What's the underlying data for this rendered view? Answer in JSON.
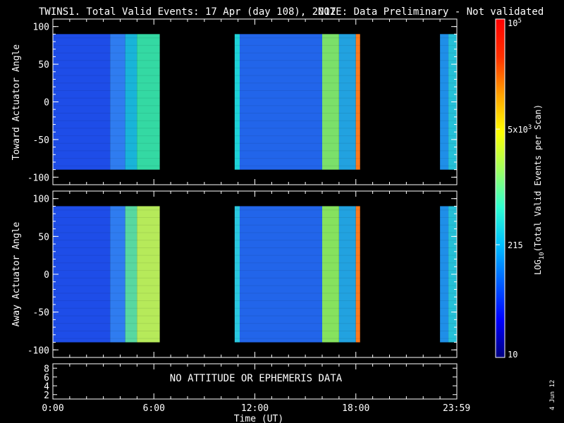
{
  "header": {
    "title": "TWINS1. Total Valid Events: 17 Apr (day 108), 2012",
    "note": "NOTE: Data Preliminary - Not validated",
    "note_color": "#ff2020"
  },
  "chart_data": [
    {
      "type": "heatmap",
      "panel": "top",
      "ylabel": "Toward Actuator Angle",
      "ylim": [
        -110,
        110
      ],
      "yticks": [
        "100",
        "50",
        "0",
        "-50",
        "-100"
      ],
      "data_y_range": [
        -90,
        90
      ],
      "x_range_hours": [
        0,
        24
      ],
      "data_blocks": [
        {
          "start_hour": 0.0,
          "end_hour": 6.35,
          "bands": [
            {
              "start": 0.0,
              "end": 3.4,
              "color": "#1e4de8"
            },
            {
              "start": 3.4,
              "end": 4.3,
              "color": "#2f7cf0"
            },
            {
              "start": 4.3,
              "end": 5.0,
              "color": "#19b4d8"
            },
            {
              "start": 5.0,
              "end": 6.35,
              "color": "#34d9a3"
            }
          ]
        },
        {
          "start_hour": 10.8,
          "end_hour": 18.25,
          "bands": [
            {
              "start": 10.8,
              "end": 11.1,
              "color": "#1ed3d8"
            },
            {
              "start": 11.1,
              "end": 16.0,
              "color": "#2265ea"
            },
            {
              "start": 16.0,
              "end": 17.0,
              "color": "#7be06a"
            },
            {
              "start": 17.0,
              "end": 18.0,
              "color": "#22a2e0"
            },
            {
              "start": 18.0,
              "end": 18.25,
              "color": "#ff7a1c"
            }
          ]
        },
        {
          "start_hour": 23.0,
          "end_hour": 24.0,
          "bands": [
            {
              "start": 23.0,
              "end": 23.5,
              "color": "#1f8fe8"
            },
            {
              "start": 23.5,
              "end": 24.0,
              "color": "#26c0d8"
            }
          ]
        }
      ]
    },
    {
      "type": "heatmap",
      "panel": "middle",
      "ylabel": "Away Actuator Angle",
      "ylim": [
        -110,
        110
      ],
      "yticks": [
        "100",
        "50",
        "0",
        "-50",
        "-100"
      ],
      "data_y_range": [
        -90,
        90
      ],
      "x_range_hours": [
        0,
        24
      ],
      "data_blocks": [
        {
          "start_hour": 0.0,
          "end_hour": 6.35,
          "bands": [
            {
              "start": 0.0,
              "end": 3.4,
              "color": "#1e4de8"
            },
            {
              "start": 3.4,
              "end": 4.3,
              "color": "#2f7cf0"
            },
            {
              "start": 4.3,
              "end": 5.0,
              "color": "#58d8a0"
            },
            {
              "start": 5.0,
              "end": 6.35,
              "color": "#b6ea5a"
            }
          ]
        },
        {
          "start_hour": 10.8,
          "end_hour": 18.25,
          "bands": [
            {
              "start": 10.8,
              "end": 11.1,
              "color": "#2ac8e0"
            },
            {
              "start": 11.1,
              "end": 16.0,
              "color": "#2265ea"
            },
            {
              "start": 16.0,
              "end": 17.0,
              "color": "#86e25e"
            },
            {
              "start": 17.0,
              "end": 18.0,
              "color": "#22a2e0"
            },
            {
              "start": 18.0,
              "end": 18.25,
              "color": "#ff7a1c"
            }
          ]
        },
        {
          "start_hour": 23.0,
          "end_hour": 24.0,
          "bands": [
            {
              "start": 23.0,
              "end": 23.5,
              "color": "#1f8fe8"
            },
            {
              "start": 23.5,
              "end": 24.0,
              "color": "#26c0d8"
            }
          ]
        }
      ]
    }
  ],
  "bottom_panel": {
    "yticks": [
      "8",
      "6",
      "4",
      "2"
    ],
    "message": "NO ATTITUDE OR EPHEMERIS DATA"
  },
  "xaxis": {
    "label": "Time (UT)",
    "ticks": [
      {
        "hour": 0,
        "label": "0:00"
      },
      {
        "hour": 6,
        "label": "6:00"
      },
      {
        "hour": 12,
        "label": "12:00"
      },
      {
        "hour": 18,
        "label": "18:00"
      },
      {
        "hour": 23.983,
        "label": "23:59"
      }
    ]
  },
  "colorbar": {
    "label_prefix": "LOG",
    "label_sub": "10",
    "label_suffix": "(Total Valid Events per Scan)",
    "scale": "log",
    "range": [
      10,
      100000
    ],
    "ticks": [
      {
        "value": 10,
        "label": "10"
      },
      {
        "value": 215,
        "label": "215"
      },
      {
        "value": 5000,
        "label_base": "5x10",
        "label_sup": "3"
      },
      {
        "value": 100000,
        "label_base": "10",
        "label_sup": "5"
      }
    ],
    "colors": [
      "#000080",
      "#0000ff",
      "#0060ff",
      "#00c0ff",
      "#30ffd0",
      "#a0ff60",
      "#ffff00",
      "#ffa000",
      "#ff3000",
      "#ff0000"
    ]
  },
  "footer": {
    "date_stamp": "4 Jun 12"
  }
}
